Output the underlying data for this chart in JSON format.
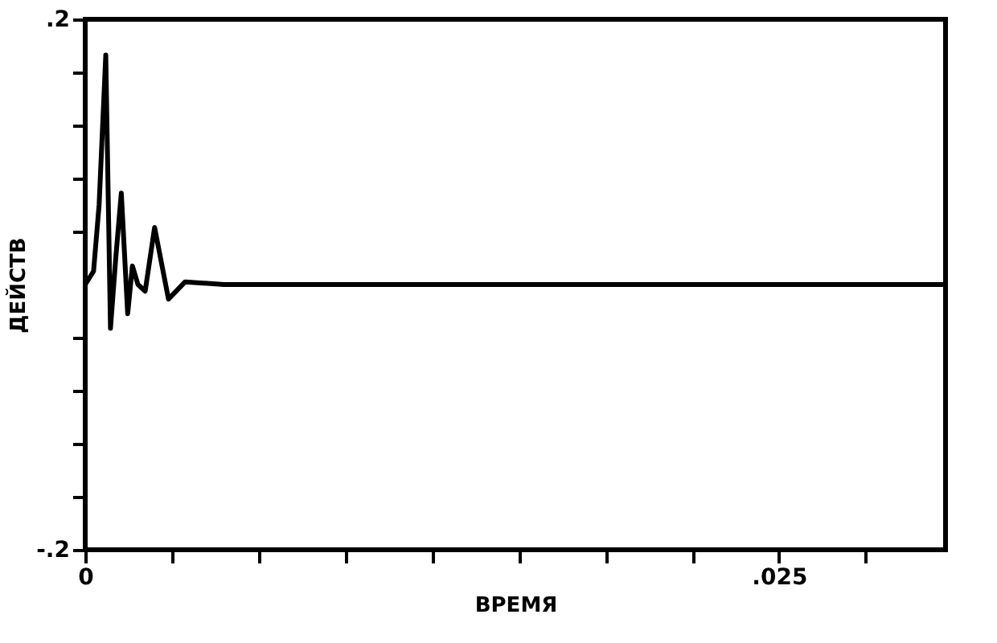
{
  "chart_data": {
    "type": "line",
    "xlabel": "ВРЕМЯ",
    "ylabel": "ДЕЙСТВ",
    "x": [
      0,
      0.0003,
      0.0005,
      0.00074,
      0.00091,
      0.0011,
      0.0013,
      0.00153,
      0.0017,
      0.0019,
      0.00216,
      0.0025,
      0.003,
      0.0036,
      0.005,
      0.01,
      0.02,
      0.031
    ],
    "series": [
      {
        "color": "#000000",
        "values": [
          0,
          0.01,
          0.06,
          0.173,
          -0.033,
          0.02,
          0.069,
          -0.022,
          0.014,
          0.0,
          -0.005,
          0.043,
          -0.011,
          0.002,
          0,
          0,
          0,
          0
        ]
      }
    ],
    "xlim": [
      0,
      0.031
    ],
    "ylim": [
      -0.2,
      0.2
    ],
    "xticks": [
      {
        "value": 0,
        "label": "0"
      },
      {
        "value": 0.003125,
        "label": null
      },
      {
        "value": 0.00625,
        "label": null
      },
      {
        "value": 0.009375,
        "label": null
      },
      {
        "value": 0.0125,
        "label": null
      },
      {
        "value": 0.015625,
        "label": null
      },
      {
        "value": 0.01875,
        "label": null
      },
      {
        "value": 0.021875,
        "label": null
      },
      {
        "value": 0.025,
        "label": ".025"
      },
      {
        "value": 0.028125,
        "label": null
      }
    ],
    "yticks": [
      {
        "value": -0.2,
        "label": "-.2"
      },
      {
        "value": -0.16,
        "label": null
      },
      {
        "value": -0.12,
        "label": null
      },
      {
        "value": -0.08,
        "label": null
      },
      {
        "value": -0.04,
        "label": null
      },
      {
        "value": 0.04,
        "label": null
      },
      {
        "value": 0.08,
        "label": null
      },
      {
        "value": 0.12,
        "label": null
      },
      {
        "value": 0.16,
        "label": null
      },
      {
        "value": 0.2,
        "label": ".2"
      }
    ],
    "grid": false,
    "marker": "none",
    "line_style": "solid"
  }
}
